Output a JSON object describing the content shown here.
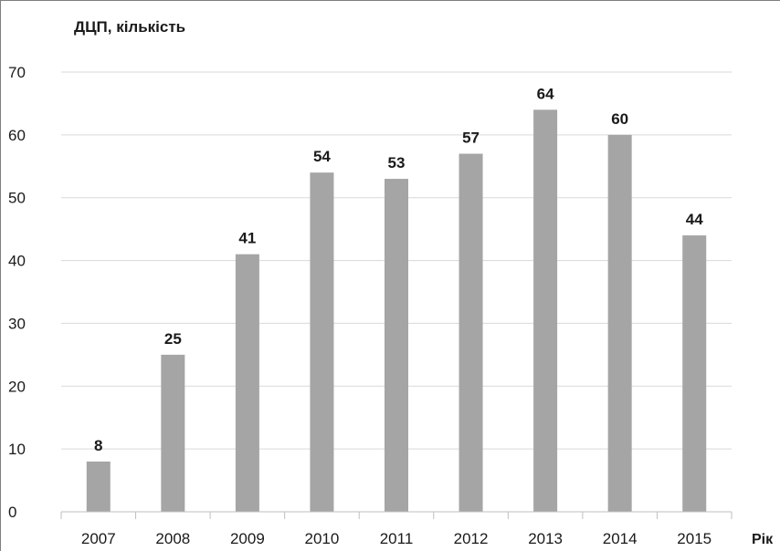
{
  "chart_data": {
    "type": "bar",
    "title": "ДЦП, кількість",
    "xlabel": "Рік",
    "ylabel": "ДЦП, кількість",
    "categories": [
      "2007",
      "2008",
      "2009",
      "2010",
      "2011",
      "2012",
      "2013",
      "2014",
      "2015"
    ],
    "values": [
      8,
      25,
      41,
      54,
      53,
      57,
      64,
      60,
      44
    ],
    "data_labels": [
      "8",
      "25",
      "41",
      "54",
      "53",
      "57",
      "64",
      "60",
      "44"
    ],
    "ylim": [
      0,
      70
    ],
    "yticks": [
      "0",
      "10",
      "20",
      "30",
      "40",
      "50",
      "60",
      "70"
    ],
    "grid": true,
    "legend": "none",
    "bar_color": "#a5a5a5",
    "grid_color": "#d9d9d9",
    "axis_color": "#bfbfbf"
  }
}
